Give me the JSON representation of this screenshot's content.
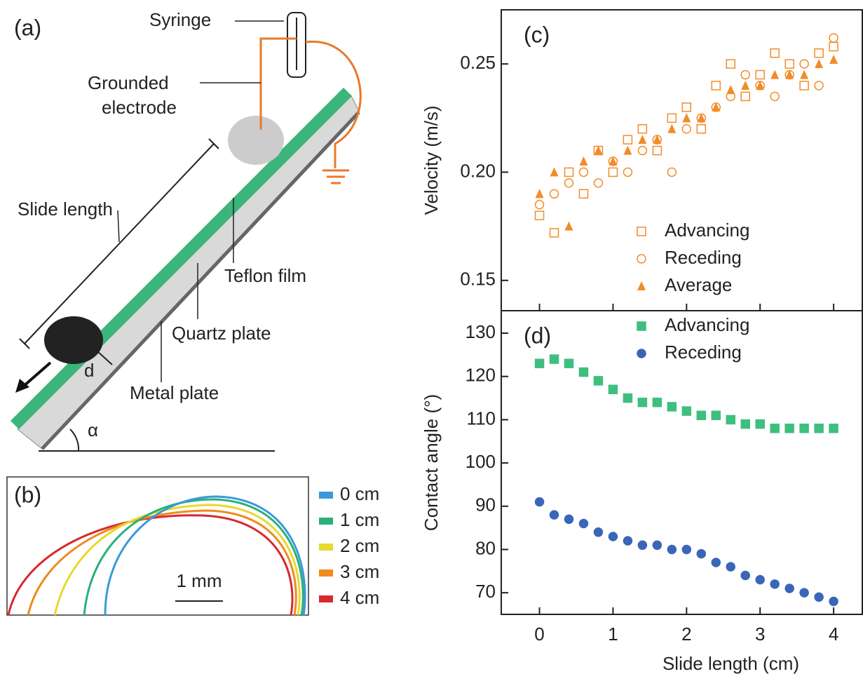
{
  "panel_a": {
    "label": "(a)",
    "syringe": "Syringe",
    "electrode": [
      "Grounded",
      "electrode"
    ],
    "slide_length": "Slide length",
    "teflon": "Teflon film",
    "quartz": "Quartz plate",
    "metal": "Metal plate",
    "d": "d",
    "alpha": "α"
  },
  "panel_b": {
    "label": "(b)",
    "scale_bar": "1 mm",
    "legend": [
      {
        "name": "0 cm",
        "color": "#3a9ad9"
      },
      {
        "name": "1 cm",
        "color": "#2bb07a"
      },
      {
        "name": "2 cm",
        "color": "#e8d92c"
      },
      {
        "name": "3 cm",
        "color": "#f08a1c"
      },
      {
        "name": "4 cm",
        "color": "#d8282e"
      }
    ]
  },
  "chart_data": [
    {
      "type": "scatter",
      "panel_label": "(c)",
      "y_label": "Velocity (m/s)",
      "xlim": [
        -0.52,
        4.39
      ],
      "ylim": [
        0.136,
        0.275
      ],
      "yticks": [
        {
          "value": 0.15,
          "label": "0.15"
        },
        {
          "value": 0.2,
          "label": "0.20"
        },
        {
          "value": 0.25,
          "label": "0.25"
        }
      ],
      "x": [
        0,
        0.2,
        0.4,
        0.6,
        0.8,
        1.0,
        1.2,
        1.4,
        1.6,
        1.8,
        2.0,
        2.2,
        2.4,
        2.6,
        2.8,
        3.0,
        3.2,
        3.4,
        3.6,
        3.8,
        4.0
      ],
      "series": [
        {
          "name": "Advancing",
          "color": "#f28c28",
          "marker": "square-open",
          "values": [
            0.18,
            0.172,
            0.2,
            0.19,
            0.21,
            0.2,
            0.215,
            0.22,
            0.21,
            0.225,
            0.23,
            0.22,
            0.24,
            0.25,
            0.235,
            0.245,
            0.255,
            0.25,
            0.24,
            0.255,
            0.258
          ]
        },
        {
          "name": "Receding",
          "color": "#f28c28",
          "marker": "circle-open",
          "values": [
            0.185,
            0.19,
            0.195,
            0.2,
            0.195,
            0.205,
            0.2,
            0.21,
            0.215,
            0.2,
            0.22,
            0.225,
            0.23,
            0.235,
            0.245,
            0.24,
            0.235,
            0.245,
            0.25,
            0.24,
            0.262
          ]
        },
        {
          "name": "Average",
          "color": "#f28c28",
          "marker": "triangle",
          "values": [
            0.19,
            0.2,
            0.175,
            0.205,
            0.21,
            0.205,
            0.21,
            0.215,
            0.215,
            0.22,
            0.225,
            0.225,
            0.23,
            0.238,
            0.24,
            0.24,
            0.245,
            0.245,
            0.245,
            0.25,
            0.252
          ]
        }
      ]
    },
    {
      "type": "scatter",
      "panel_label": "(d)",
      "y_label": "Contact angle (°)",
      "x_label": "Slide length (cm)",
      "xlim": [
        -0.52,
        4.39
      ],
      "ylim": [
        65,
        135.2
      ],
      "xticks": [
        0,
        1,
        2,
        3,
        4
      ],
      "yticks": [
        70,
        80,
        90,
        100,
        110,
        120,
        130
      ],
      "x": [
        0,
        0.2,
        0.4,
        0.6,
        0.8,
        1.0,
        1.2,
        1.4,
        1.6,
        1.8,
        2.0,
        2.2,
        2.4,
        2.6,
        2.8,
        3.0,
        3.2,
        3.4,
        3.6,
        3.8,
        4.0
      ],
      "series": [
        {
          "name": "Advancing",
          "color": "#3fbf7f",
          "marker": "square",
          "values": [
            123,
            124,
            123,
            121,
            119,
            117,
            115,
            114,
            114,
            113,
            112,
            111,
            111,
            110,
            109,
            109,
            108,
            108,
            108,
            108,
            108
          ]
        },
        {
          "name": "Receding",
          "color": "#3a66b8",
          "marker": "circle",
          "values": [
            91,
            88,
            87,
            86,
            84,
            83,
            82,
            81,
            81,
            80,
            80,
            79,
            77,
            76,
            74,
            73,
            72,
            71,
            70,
            69,
            68
          ]
        }
      ]
    }
  ]
}
